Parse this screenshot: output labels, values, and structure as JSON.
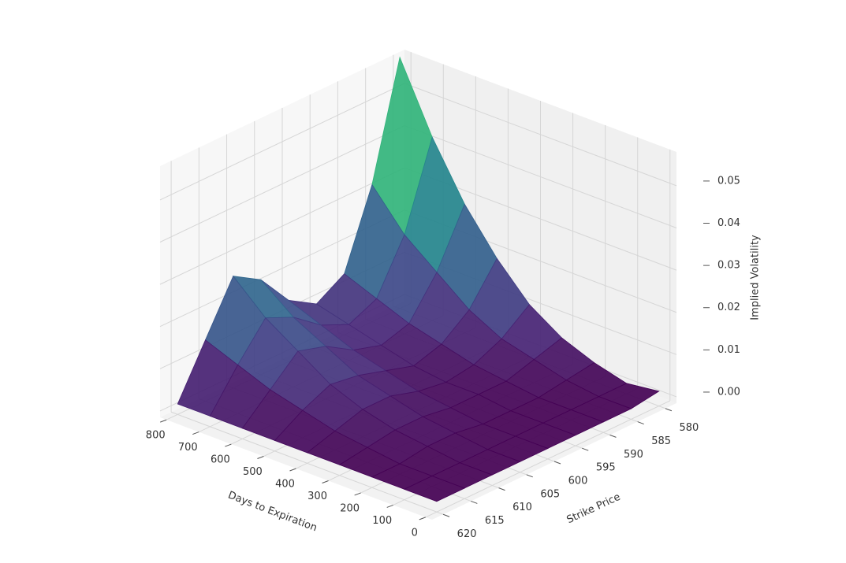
{
  "chart_data": {
    "type": "surface3d",
    "x_label": "Days to Expiration",
    "y_label": "Strike Price",
    "z_label": "Implied Volatility",
    "x": [
      0,
      100,
      200,
      300,
      400,
      500,
      600,
      700,
      800
    ],
    "y": [
      580,
      585,
      590,
      595,
      600,
      605,
      610,
      615,
      620
    ],
    "z": [
      [
        0.002,
        0.001,
        0.001,
        0.001,
        0.001,
        0.001,
        0.001,
        0.001,
        0.001
      ],
      [
        0.001,
        0.001,
        0.001,
        0.001,
        0.001,
        0.001,
        0.001,
        0.001,
        0.001
      ],
      [
        0.003,
        0.002,
        0.001,
        0.001,
        0.001,
        0.002,
        0.002,
        0.001,
        0.001
      ],
      [
        0.006,
        0.004,
        0.002,
        0.002,
        0.002,
        0.003,
        0.003,
        0.002,
        0.001
      ],
      [
        0.011,
        0.006,
        0.003,
        0.002,
        0.003,
        0.005,
        0.005,
        0.003,
        0.001
      ],
      [
        0.019,
        0.01,
        0.005,
        0.003,
        0.005,
        0.007,
        0.008,
        0.005,
        0.001
      ],
      [
        0.029,
        0.016,
        0.007,
        0.005,
        0.007,
        0.011,
        0.013,
        0.007,
        0.001
      ],
      [
        0.042,
        0.022,
        0.01,
        0.007,
        0.01,
        0.015,
        0.018,
        0.01,
        0.001
      ],
      [
        0.058,
        0.031,
        0.013,
        0.009,
        0.013,
        0.021,
        0.025,
        0.013,
        0.001
      ]
    ],
    "xlim": [
      -20,
      820
    ],
    "ylim": [
      578,
      622
    ],
    "zlim": [
      -0.0015,
      0.058
    ],
    "xticks": [
      0,
      100,
      200,
      300,
      400,
      500,
      600,
      700,
      800
    ],
    "yticks": [
      580,
      585,
      590,
      595,
      600,
      605,
      610,
      615,
      620
    ],
    "zticks": [
      {
        "value": 0,
        "label": "0.00"
      },
      0.01,
      0.02,
      0.03,
      0.04,
      0.05
    ],
    "colormap": "viridis",
    "grid": true
  }
}
